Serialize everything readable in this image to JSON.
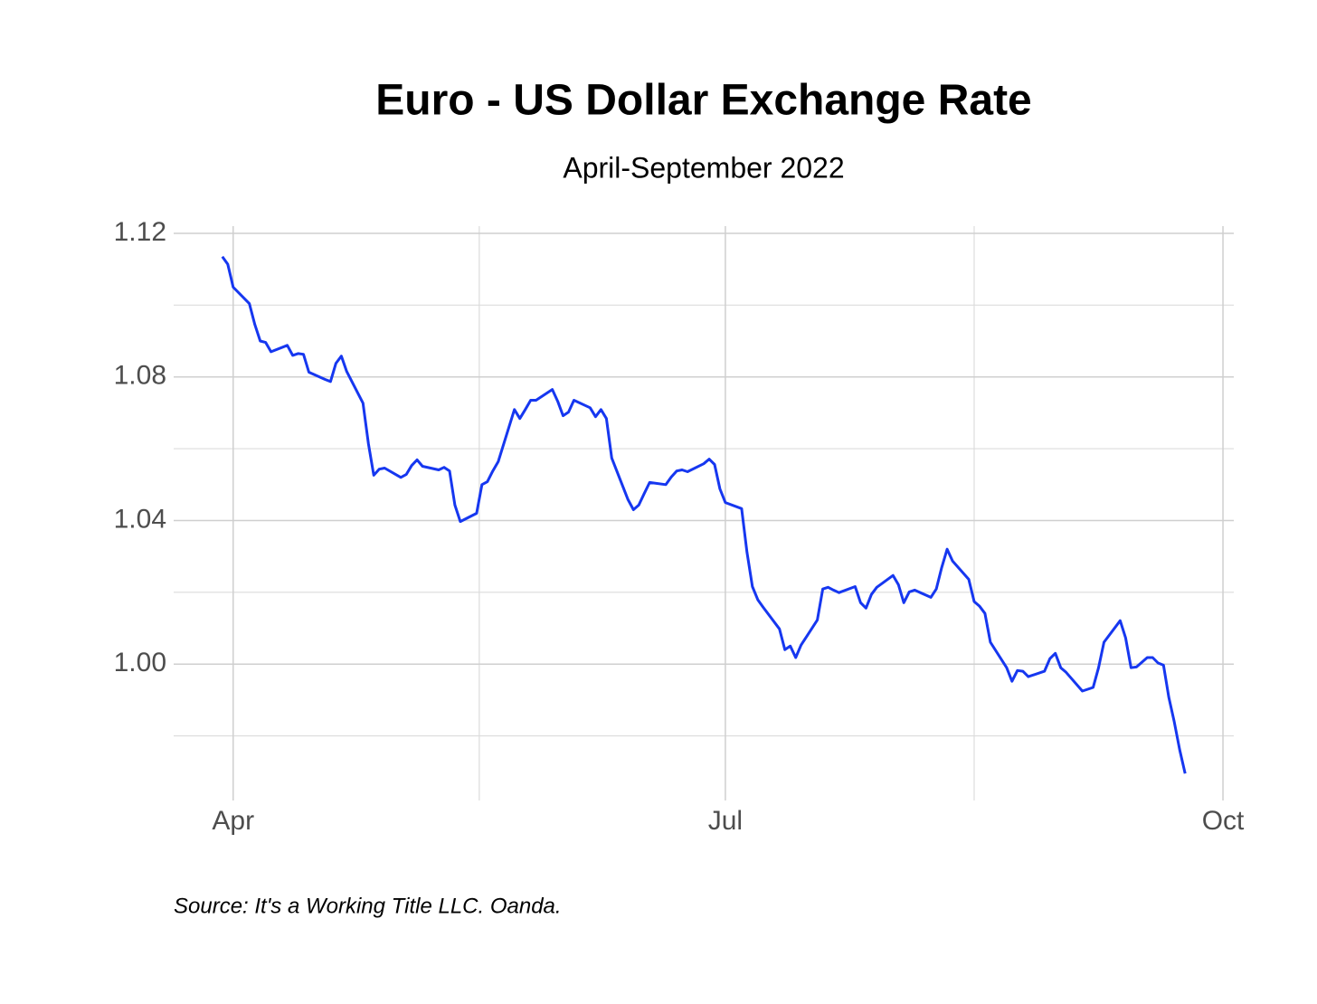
{
  "chart_data": {
    "type": "line",
    "title": "Euro - US Dollar Exchange Rate",
    "subtitle": "April-September 2022",
    "caption": "Source: It's a Working Title LLC. Oanda.",
    "color": "#1637f0",
    "x": [
      -2,
      -1,
      0,
      3,
      4,
      5,
      6,
      7,
      10,
      11,
      12,
      13,
      14,
      17,
      18,
      19,
      20,
      21,
      24,
      25,
      26,
      27,
      28,
      31,
      32,
      33,
      34,
      35,
      38,
      39,
      40,
      41,
      42,
      45,
      46,
      47,
      48,
      49,
      52,
      53,
      54,
      55,
      56,
      59,
      60,
      61,
      62,
      63,
      66,
      67,
      68,
      69,
      70,
      73,
      74,
      75,
      76,
      77,
      80,
      81,
      82,
      83,
      84,
      87,
      88,
      89,
      90,
      91,
      94,
      95,
      96,
      97,
      98,
      101,
      102,
      103,
      104,
      105,
      108,
      109,
      110,
      111,
      112,
      115,
      116,
      117,
      118,
      119,
      122,
      123,
      124,
      125,
      126,
      129,
      130,
      131,
      132,
      133,
      136,
      137,
      138,
      139,
      140,
      143,
      144,
      145,
      146,
      147,
      150,
      151,
      152,
      153,
      154,
      157,
      158,
      159,
      160,
      161,
      164,
      165,
      166,
      167,
      168,
      169,
      170,
      171,
      172,
      173,
      174,
      175,
      176
    ],
    "values": [
      1.1135,
      1.1114,
      1.105,
      1.1004,
      1.0946,
      1.09,
      1.0896,
      1.087,
      1.0888,
      1.086,
      1.0865,
      1.0863,
      1.0813,
      1.0793,
      1.0787,
      1.0838,
      1.0858,
      1.0815,
      1.0727,
      1.0614,
      1.0526,
      1.0543,
      1.0546,
      1.052,
      1.0528,
      1.0553,
      1.0569,
      1.0551,
      1.0541,
      1.0548,
      1.0538,
      1.0443,
      1.0397,
      1.042,
      1.05,
      1.0508,
      1.0538,
      1.0564,
      1.0709,
      1.0684,
      1.0709,
      1.0735,
      1.0735,
      1.0765,
      1.0732,
      1.0692,
      1.0702,
      1.0735,
      1.0714,
      1.0689,
      1.0709,
      1.0684,
      1.0574,
      1.0458,
      1.043,
      1.0443,
      1.0475,
      1.0506,
      1.05,
      1.0521,
      1.0538,
      1.0541,
      1.0536,
      1.0558,
      1.0571,
      1.0556,
      1.0488,
      1.045,
      1.0433,
      1.0312,
      1.0216,
      1.0179,
      1.0158,
      1.0098,
      1.004,
      1.005,
      1.0018,
      1.0053,
      1.0123,
      1.0209,
      1.0214,
      1.0206,
      1.0199,
      1.0216,
      1.0171,
      1.0156,
      1.0194,
      1.0214,
      1.0247,
      1.0221,
      1.0171,
      1.0201,
      1.0206,
      1.0186,
      1.0209,
      1.0269,
      1.032,
      1.0287,
      1.0236,
      1.0174,
      1.0161,
      1.0141,
      1.0061,
      0.999,
      0.9952,
      0.9982,
      0.998,
      0.9965,
      0.998,
      1.0015,
      1.003,
      0.999,
      0.9977,
      0.9925,
      0.993,
      0.9935,
      0.999,
      1.0061,
      1.0121,
      1.0073,
      0.999,
      0.9992,
      1.0005,
      1.0018,
      1.0018,
      1.0003,
      0.9997,
      0.9907,
      0.9839,
      0.9761,
      0.9695
    ],
    "xlim": [
      -11,
      185
    ],
    "ylim": [
      0.962,
      1.122
    ],
    "xticks": [
      {
        "value": 0,
        "label": "Apr"
      },
      {
        "value": 91,
        "label": "Jul"
      },
      {
        "value": 183,
        "label": "Oct"
      }
    ],
    "xminorticks": [
      45.5,
      137
    ],
    "yticks": [
      {
        "value": 1,
        "label": "1.00"
      },
      1.04,
      1.08,
      1.12
    ],
    "yminorticks": [
      0.98,
      1.02,
      1.06,
      1.1
    ],
    "grid": true
  }
}
